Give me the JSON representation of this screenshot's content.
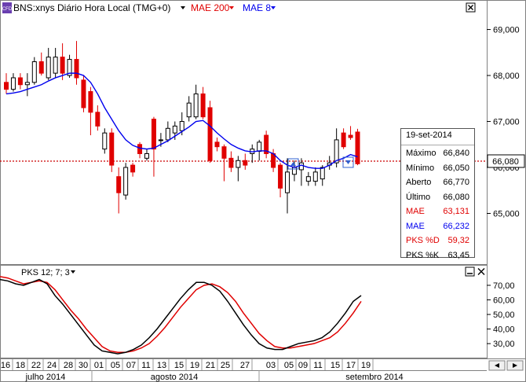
{
  "header": {
    "symbol_tag": "CFD",
    "symbol_label": "BNS:xnys Diário Hora Local (TMG+0)",
    "indicator1_label": "MAE 200",
    "indicator2_label": "MAE 8",
    "indicator1_color": "#e00000",
    "indicator2_color": "#0000ee"
  },
  "price_panel": {
    "last_price_label": "66,080",
    "y_tick_labels": [
      "69,000",
      "68,000",
      "67,000",
      "66,000",
      "65,000"
    ],
    "price_line_color": "#cc0000"
  },
  "info_box": {
    "date": "19-set-2014",
    "rows": [
      {
        "label": "Máximo",
        "value": "66,840",
        "color": "#000000"
      },
      {
        "label": "Mínimo",
        "value": "66,050",
        "color": "#000000"
      },
      {
        "label": "Aberto",
        "value": "66,770",
        "color": "#000000"
      },
      {
        "label": "Último",
        "value": "66,080",
        "color": "#000000"
      },
      {
        "label": "MAE",
        "value": "63,131",
        "color": "#e00000"
      },
      {
        "label": "MAE",
        "value": "66,232",
        "color": "#0000ee"
      },
      {
        "label": "PKS %D",
        "value": "59,32",
        "color": "#e00000"
      },
      {
        "label": "PKS %K",
        "value": "63,45",
        "color": "#000000"
      }
    ]
  },
  "stoch_panel": {
    "label": "PKS 12; 7; 3",
    "y_tick_labels": [
      "70,00",
      "60,00",
      "50,00",
      "40,00",
      "30,00"
    ]
  },
  "x_axis": {
    "day_labels": [
      "16",
      "18",
      "22",
      "24",
      "28",
      "30",
      "01",
      "05",
      "07",
      "11",
      "13",
      "15",
      "19",
      "21",
      "25",
      "27",
      "03",
      "05",
      "09",
      "11",
      "15",
      "17",
      "19"
    ],
    "month_labels": [
      "julho 2014",
      "agosto 2014",
      "setembro 2014"
    ]
  },
  "chart_data": {
    "type": "candlestick",
    "y_range": [
      64.0,
      69.3
    ],
    "candles": [
      {
        "o": 67.85,
        "h": 68.05,
        "l": 67.6,
        "c": 67.7
      },
      {
        "o": 67.7,
        "h": 68.05,
        "l": 67.65,
        "c": 67.95
      },
      {
        "o": 67.95,
        "h": 68.05,
        "l": 67.7,
        "c": 67.8
      },
      {
        "o": 67.8,
        "h": 68.05,
        "l": 67.55,
        "c": 67.85
      },
      {
        "o": 67.85,
        "h": 68.4,
        "l": 67.8,
        "c": 68.3
      },
      {
        "o": 68.3,
        "h": 68.5,
        "l": 68.0,
        "c": 68.05
      },
      {
        "o": 67.95,
        "h": 68.6,
        "l": 67.9,
        "c": 68.4
      },
      {
        "o": 68.05,
        "h": 68.6,
        "l": 67.95,
        "c": 68.4
      },
      {
        "o": 68.4,
        "h": 68.7,
        "l": 67.9,
        "c": 68.05
      },
      {
        "o": 68.0,
        "h": 68.45,
        "l": 67.95,
        "c": 68.35
      },
      {
        "o": 68.35,
        "h": 68.75,
        "l": 67.8,
        "c": 67.95
      },
      {
        "o": 67.9,
        "h": 68.0,
        "l": 67.2,
        "c": 67.3
      },
      {
        "o": 67.65,
        "h": 67.75,
        "l": 66.7,
        "c": 67.2
      },
      {
        "o": 67.2,
        "h": 67.35,
        "l": 66.8,
        "c": 66.9
      },
      {
        "o": 66.4,
        "h": 66.85,
        "l": 66.3,
        "c": 66.75
      },
      {
        "o": 66.75,
        "h": 66.85,
        "l": 65.9,
        "c": 66.05
      },
      {
        "o": 65.8,
        "h": 66.0,
        "l": 65.0,
        "c": 65.45
      },
      {
        "o": 65.4,
        "h": 66.1,
        "l": 65.3,
        "c": 66.0
      },
      {
        "o": 66.05,
        "h": 66.1,
        "l": 65.8,
        "c": 65.9
      },
      {
        "o": 66.5,
        "h": 66.55,
        "l": 66.2,
        "c": 66.3
      },
      {
        "o": 66.2,
        "h": 66.4,
        "l": 66.15,
        "c": 66.3
      },
      {
        "o": 67.05,
        "h": 67.1,
        "l": 65.8,
        "c": 66.4
      },
      {
        "o": 66.6,
        "h": 66.75,
        "l": 66.45,
        "c": 66.6
      },
      {
        "o": 66.6,
        "h": 67.0,
        "l": 66.55,
        "c": 66.85
      },
      {
        "o": 66.75,
        "h": 67.0,
        "l": 66.6,
        "c": 66.9
      },
      {
        "o": 66.8,
        "h": 67.2,
        "l": 66.7,
        "c": 67.0
      },
      {
        "o": 67.1,
        "h": 67.55,
        "l": 67.0,
        "c": 67.4
      },
      {
        "o": 67.1,
        "h": 67.8,
        "l": 67.05,
        "c": 67.6
      },
      {
        "o": 67.6,
        "h": 67.75,
        "l": 67.05,
        "c": 67.1
      },
      {
        "o": 67.3,
        "h": 67.45,
        "l": 66.1,
        "c": 66.15
      },
      {
        "o": 66.55,
        "h": 66.65,
        "l": 66.35,
        "c": 66.45
      },
      {
        "o": 66.45,
        "h": 66.5,
        "l": 65.7,
        "c": 66.2
      },
      {
        "o": 66.2,
        "h": 66.35,
        "l": 65.9,
        "c": 66.0
      },
      {
        "o": 66.0,
        "h": 66.25,
        "l": 65.7,
        "c": 66.15
      },
      {
        "o": 66.15,
        "h": 66.3,
        "l": 65.95,
        "c": 66.05
      },
      {
        "o": 66.3,
        "h": 66.5,
        "l": 66.1,
        "c": 66.4
      },
      {
        "o": 66.35,
        "h": 66.6,
        "l": 66.15,
        "c": 66.55
      },
      {
        "o": 66.7,
        "h": 66.8,
        "l": 66.2,
        "c": 66.3
      },
      {
        "o": 66.3,
        "h": 66.4,
        "l": 65.9,
        "c": 66.0
      },
      {
        "o": 66.05,
        "h": 66.1,
        "l": 65.35,
        "c": 65.55
      },
      {
        "o": 65.45,
        "h": 66.2,
        "l": 65.0,
        "c": 65.9
      },
      {
        "o": 65.85,
        "h": 66.15,
        "l": 65.7,
        "c": 66.0
      },
      {
        "o": 65.95,
        "h": 66.2,
        "l": 65.6,
        "c": 66.1
      },
      {
        "o": 65.7,
        "h": 65.9,
        "l": 65.6,
        "c": 65.8
      },
      {
        "o": 65.7,
        "h": 66.0,
        "l": 65.6,
        "c": 65.9
      },
      {
        "o": 65.75,
        "h": 66.05,
        "l": 65.6,
        "c": 66.0
      },
      {
        "o": 66.05,
        "h": 66.25,
        "l": 65.95,
        "c": 66.1
      },
      {
        "o": 66.1,
        "h": 66.85,
        "l": 66.0,
        "c": 66.6
      },
      {
        "o": 66.75,
        "h": 66.85,
        "l": 66.4,
        "c": 66.45
      },
      {
        "o": 66.7,
        "h": 66.9,
        "l": 66.6,
        "c": 66.65
      },
      {
        "o": 66.77,
        "h": 66.84,
        "l": 66.05,
        "c": 66.08
      }
    ],
    "mae8": [
      67.6,
      67.62,
      67.65,
      67.7,
      67.75,
      67.8,
      67.88,
      67.95,
      68.0,
      68.05,
      68.05,
      68.0,
      67.85,
      67.6,
      67.3,
      67.05,
      66.8,
      66.6,
      66.48,
      66.42,
      66.4,
      66.42,
      66.5,
      66.58,
      66.68,
      66.78,
      66.88,
      67.0,
      67.02,
      66.9,
      66.75,
      66.62,
      66.5,
      66.42,
      66.36,
      66.34,
      66.36,
      66.36,
      66.3,
      66.15,
      66.05,
      66.0,
      66.05,
      66.0,
      65.98,
      65.98,
      66.05,
      66.15,
      66.2,
      66.28,
      66.23
    ],
    "pks_y_range": [
      22,
      77
    ],
    "pks_k": [
      74,
      73,
      71,
      70,
      72,
      74,
      71,
      63,
      57,
      50,
      43,
      36,
      29,
      25,
      24,
      23,
      24,
      26,
      29,
      34,
      40,
      47,
      54,
      61,
      67,
      72,
      72,
      70,
      66,
      59,
      51,
      43,
      36,
      30,
      27,
      26,
      26,
      28,
      30,
      31,
      32,
      34,
      38,
      44,
      51,
      59,
      63
    ],
    "pks_d": [
      76,
      75,
      73,
      71,
      72,
      73,
      72,
      67,
      60,
      53,
      47,
      40,
      34,
      28,
      25,
      24,
      24,
      25,
      27,
      30,
      35,
      41,
      48,
      55,
      61,
      67,
      70,
      71,
      69,
      65,
      59,
      51,
      44,
      37,
      32,
      28,
      27,
      27,
      28,
      29,
      30,
      32,
      34,
      38,
      44,
      51,
      59
    ]
  }
}
